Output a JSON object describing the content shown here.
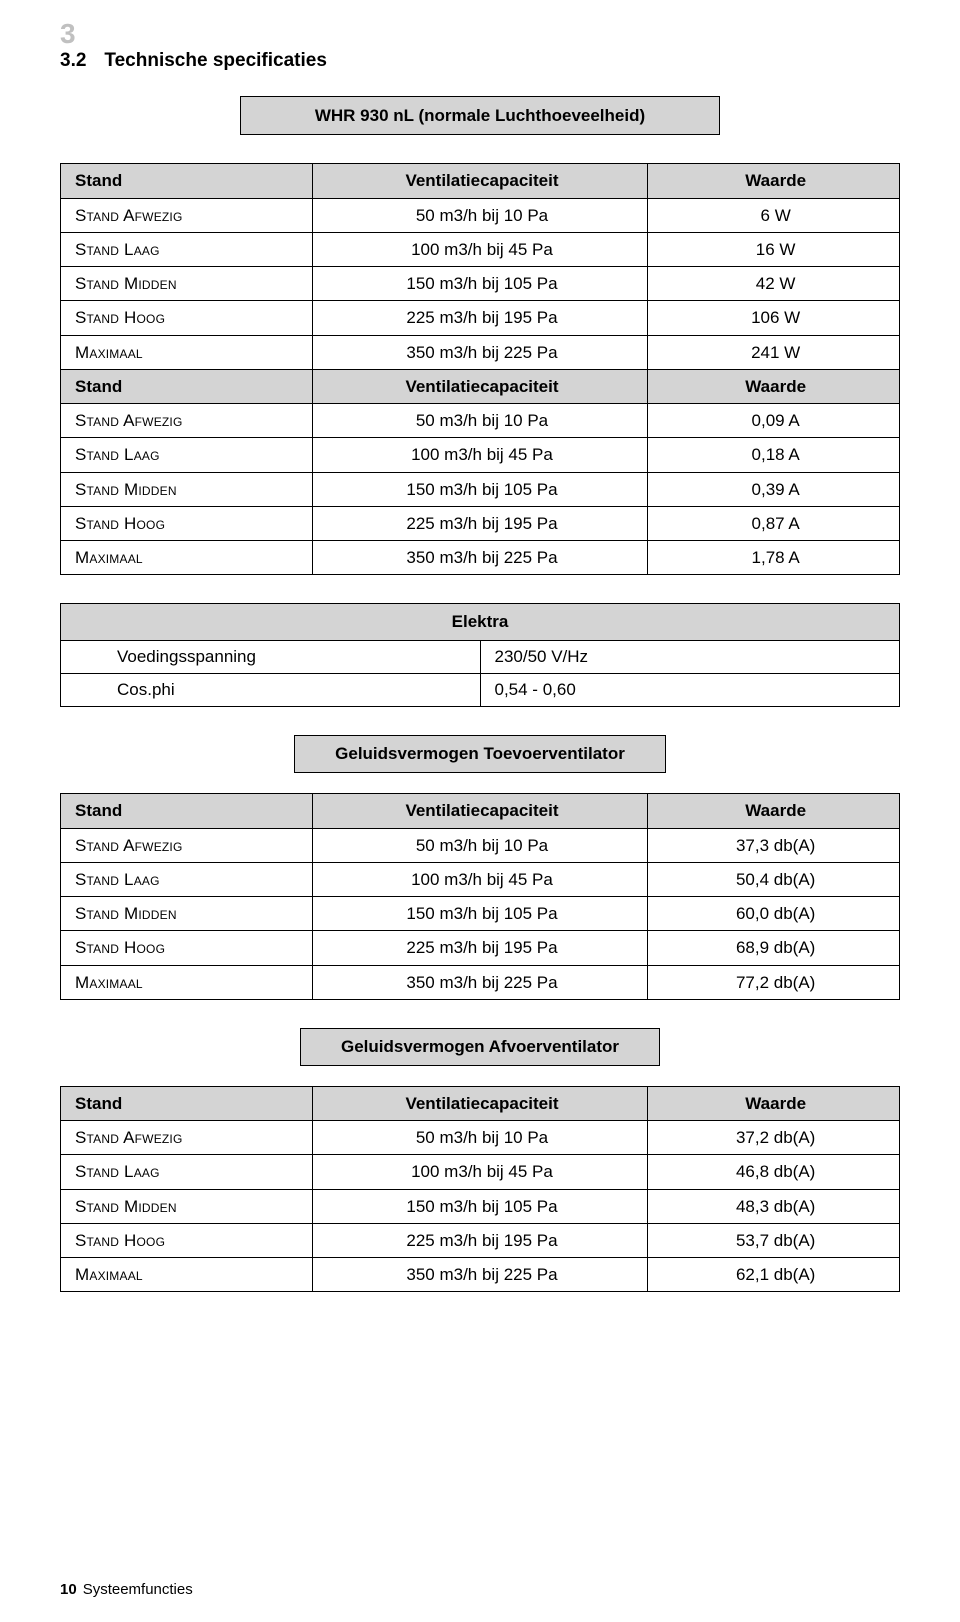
{
  "page_number_gray": "3",
  "heading_number": "3.2",
  "heading_text": "Technische specificaties",
  "footer_page": "10",
  "footer_text": "Systeemfuncties",
  "table1": {
    "title": "WHR 930 nL (normale Luchthoeveelheid)",
    "header": {
      "a": "Stand",
      "b": "Ventilatiecapaciteit",
      "c": "Waarde"
    },
    "rows_w": [
      {
        "a": "Stand Afwezig",
        "b": "50 m3/h bij 10 Pa",
        "c": "6 W"
      },
      {
        "a": "Stand Laag",
        "b": "100 m3/h bij 45 Pa",
        "c": "16 W"
      },
      {
        "a": "Stand Midden",
        "b": "150 m3/h bij 105 Pa",
        "c": "42 W"
      },
      {
        "a": "Stand Hoog",
        "b": "225 m3/h bij 195 Pa",
        "c": "106 W"
      },
      {
        "a": "Maximaal",
        "b": "350 m3/h bij 225 Pa",
        "c": "241 W"
      }
    ],
    "header2": {
      "a": "Stand",
      "b": "Ventilatiecapaciteit",
      "c": "Waarde"
    },
    "rows_a": [
      {
        "a": "Stand Afwezig",
        "b": "50 m3/h bij 10 Pa",
        "c": "0,09 A"
      },
      {
        "a": "Stand Laag",
        "b": "100 m3/h bij 45 Pa",
        "c": "0,18 A"
      },
      {
        "a": "Stand Midden",
        "b": "150 m3/h bij 105 Pa",
        "c": "0,39 A"
      },
      {
        "a": "Stand Hoog",
        "b": "225 m3/h bij 195 Pa",
        "c": "0,87 A"
      },
      {
        "a": "Maximaal",
        "b": "350 m3/h bij 225 Pa",
        "c": "1,78 A"
      }
    ]
  },
  "elektra": {
    "title": "Elektra",
    "rows": [
      {
        "label": "Voedingsspanning",
        "value": "230/50 V/Hz"
      },
      {
        "label": "Cos.phi",
        "value": "0,54 - 0,60"
      }
    ]
  },
  "banner_toevoer": "Geluidsvermogen Toevoerventilator",
  "table_toevoer": {
    "header": {
      "a": "Stand",
      "b": "Ventilatiecapaciteit",
      "c": "Waarde"
    },
    "rows": [
      {
        "a": "Stand Afwezig",
        "b": "50 m3/h bij 10 Pa",
        "c": "37,3 db(A)"
      },
      {
        "a": "Stand Laag",
        "b": "100 m3/h bij 45 Pa",
        "c": "50,4 db(A)"
      },
      {
        "a": "Stand Midden",
        "b": "150 m3/h bij 105 Pa",
        "c": "60,0 db(A)"
      },
      {
        "a": "Stand Hoog",
        "b": "225 m3/h bij 195 Pa",
        "c": "68,9 db(A)"
      },
      {
        "a": "Maximaal",
        "b": "350 m3/h bij 225 Pa",
        "c": "77,2 db(A)"
      }
    ]
  },
  "banner_afvoer": "Geluidsvermogen Afvoerventilator",
  "table_afvoer": {
    "header": {
      "a": "Stand",
      "b": "Ventilatiecapaciteit",
      "c": "Waarde"
    },
    "rows": [
      {
        "a": "Stand Afwezig",
        "b": "50 m3/h bij 10 Pa",
        "c": "37,2 db(A)"
      },
      {
        "a": "Stand Laag",
        "b": "100 m3/h bij 45 Pa",
        "c": "46,8 db(A)"
      },
      {
        "a": "Stand Midden",
        "b": "150 m3/h bij 105 Pa",
        "c": "48,3 db(A)"
      },
      {
        "a": "Stand Hoog",
        "b": "225 m3/h bij 195 Pa",
        "c": "53,7 db(A)"
      },
      {
        "a": "Maximaal",
        "b": "350 m3/h bij 225 Pa",
        "c": "62,1 db(A)"
      }
    ]
  }
}
